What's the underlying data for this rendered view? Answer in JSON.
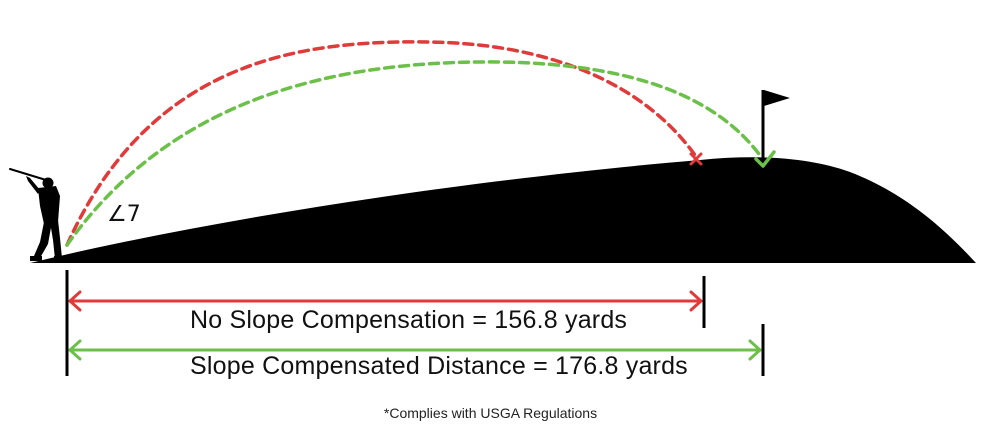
{
  "diagram": {
    "angle_label": "∠7",
    "no_slope_label": "No Slope Compensation = 156.8 yards",
    "compensated_label": "Slope Compensated Distance = 176.8 yards",
    "footnote": "*Complies with USGA Regulations",
    "no_slope_distance_yards": 156.8,
    "compensated_distance_yards": 176.8,
    "slope_angle_degrees": 7
  },
  "colors": {
    "no_slope": "#e03a3a",
    "compensated": "#6cc04a",
    "terrain": "#000000",
    "text": "#111111"
  },
  "icons": {
    "golfer": "golfer-silhouette-icon",
    "flag": "flag-icon",
    "miss": "x-mark-icon",
    "hit": "checkmark-icon"
  }
}
